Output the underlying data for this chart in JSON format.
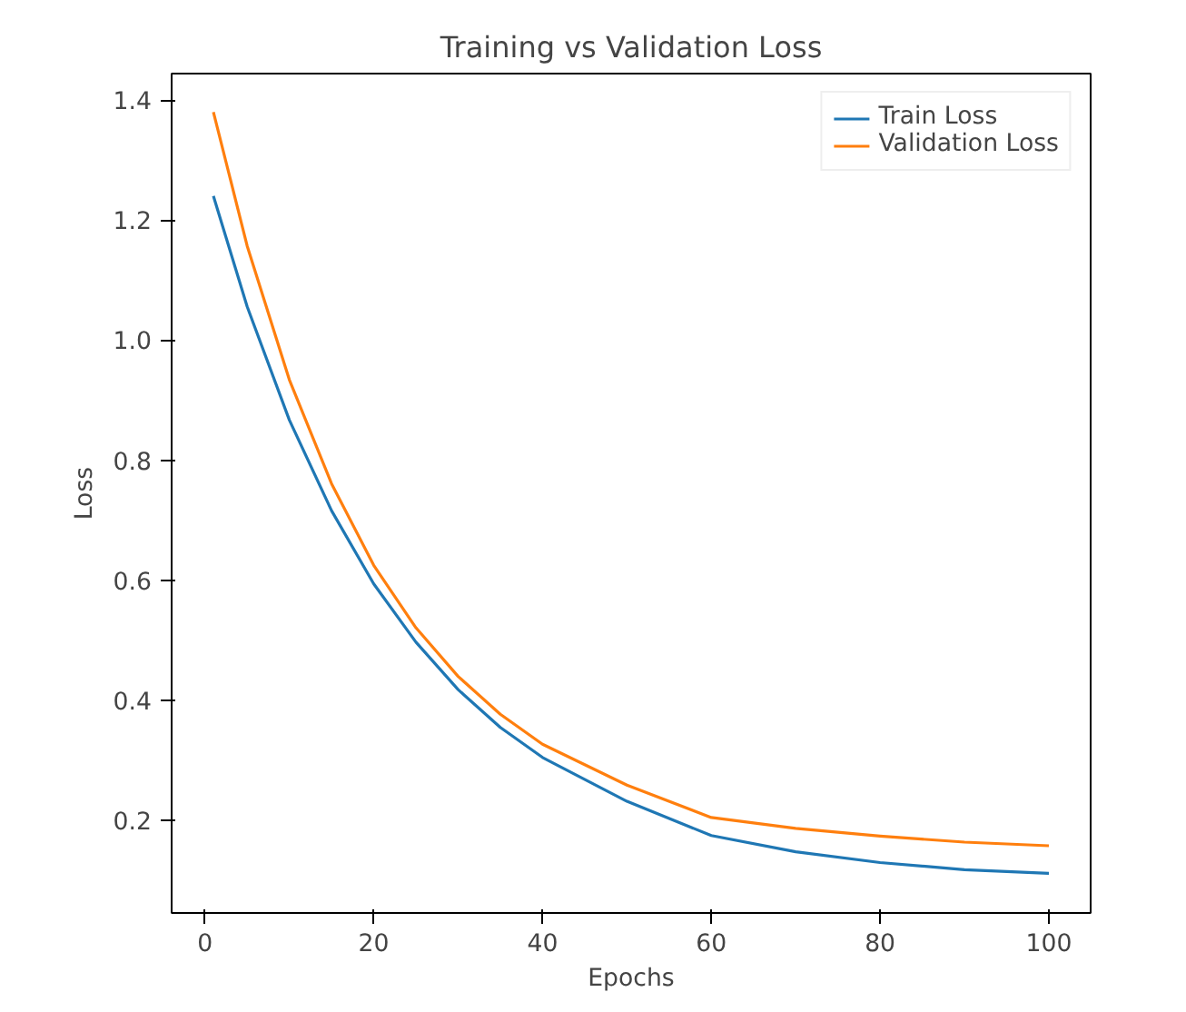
{
  "chart_data": {
    "type": "line",
    "title": "Training vs Validation Loss",
    "xlabel": "Epochs",
    "ylabel": "Loss",
    "x": [
      1,
      5,
      10,
      15,
      20,
      25,
      30,
      35,
      40,
      50,
      60,
      70,
      80,
      90,
      100
    ],
    "series": [
      {
        "name": "Train Loss",
        "color": "#1f77b4",
        "values": [
          1.24,
          1.056,
          0.867,
          0.716,
          0.594,
          0.497,
          0.418,
          0.355,
          0.305,
          0.232,
          0.175,
          0.148,
          0.13,
          0.118,
          0.112
        ]
      },
      {
        "name": "Validation Loss",
        "color": "#ff7f0e",
        "values": [
          1.38,
          1.157,
          0.934,
          0.761,
          0.625,
          0.521,
          0.44,
          0.377,
          0.327,
          0.259,
          0.205,
          0.187,
          0.174,
          0.164,
          0.158
        ]
      }
    ],
    "xlim": [
      -3.95,
      104.95
    ],
    "ylim": [
      0.046,
      1.444
    ],
    "xticks": [
      0,
      20,
      40,
      60,
      80,
      100
    ],
    "yticks": [
      {
        "value": 0.2,
        "label": "0.2"
      },
      {
        "value": 0.4,
        "label": "0.4"
      },
      {
        "value": 0.6,
        "label": "0.6"
      },
      {
        "value": 0.8,
        "label": "0.8"
      },
      {
        "value": 1.0,
        "label": "1.0"
      },
      {
        "value": 1.2,
        "label": "1.2"
      },
      {
        "value": 1.4,
        "label": "1.4"
      }
    ],
    "legend": "top right",
    "grid": false,
    "line_style": "solid"
  }
}
